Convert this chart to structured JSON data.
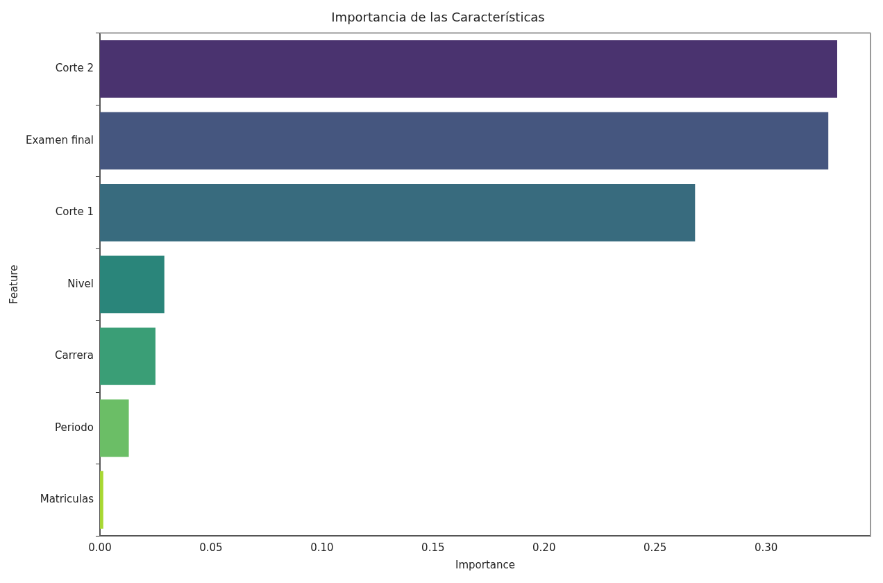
{
  "chart_data": {
    "type": "bar",
    "orientation": "horizontal",
    "title": "Importancia de las Características",
    "xlabel": "Importance",
    "ylabel": "Feature",
    "categories": [
      "Corte 2",
      "Examen final",
      "Corte 1",
      "Nivel",
      "Carrera",
      "Periodo",
      "Matriculas"
    ],
    "values": [
      0.332,
      0.328,
      0.268,
      0.029,
      0.025,
      0.013,
      0.0015
    ],
    "colors": [
      "#4a336f",
      "#45567f",
      "#386b7e",
      "#2a857a",
      "#3a9e76",
      "#6bbe66",
      "#a8d832"
    ],
    "xlim": [
      0,
      0.347
    ],
    "xticks": [
      {
        "value": 0,
        "label": "0.00"
      },
      {
        "value": 0.05,
        "label": "0.05"
      },
      {
        "value": 0.1,
        "label": "0.10"
      },
      {
        "value": 0.15,
        "label": "0.15"
      },
      {
        "value": 0.2,
        "label": "0.20"
      },
      {
        "value": 0.25,
        "label": "0.25"
      },
      {
        "value": 0.3,
        "label": "0.30"
      }
    ],
    "grid": false,
    "legend": false
  }
}
